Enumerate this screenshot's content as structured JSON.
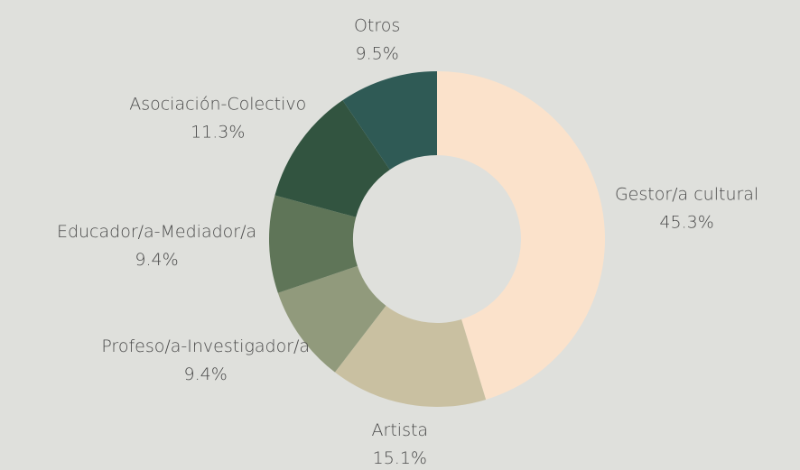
{
  "chart_data": {
    "type": "donut",
    "categories": [
      "Gestor/a cultural",
      "Artista",
      "Profeso/a-Investigador/a",
      "Educador/a-Mediador/a",
      "Asociación-Colectivo",
      "Otros"
    ],
    "values": [
      45.3,
      15.1,
      9.4,
      9.4,
      11.3,
      9.5
    ],
    "value_labels": [
      "45.3%",
      "15.1%",
      "9.4%",
      "9.4%",
      "11.3%",
      "9.5%"
    ],
    "colors": [
      "#fbe2cb",
      "#c9c0a1",
      "#919a7c",
      "#5f7558",
      "#325440",
      "#2f5a55"
    ]
  }
}
